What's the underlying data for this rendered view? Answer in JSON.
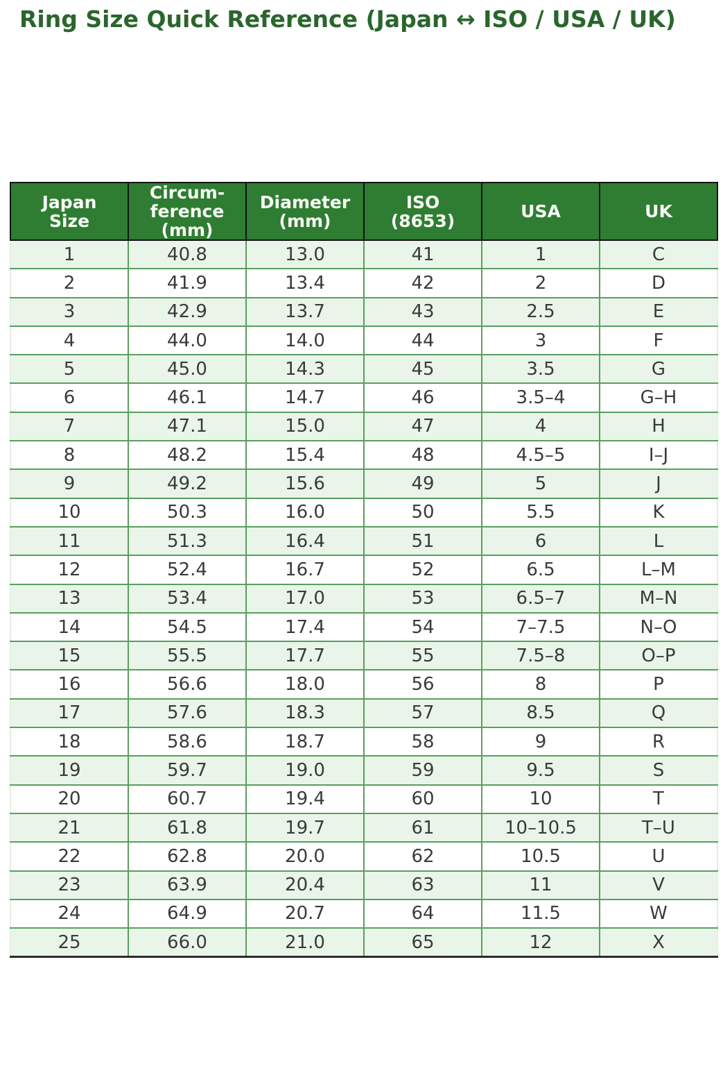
{
  "page": {
    "title": "Ring Size Quick Reference (Japan ↔ ISO / USA / UK)"
  },
  "chart_data": {
    "type": "table",
    "title": "Ring Size Quick Reference (Japan ↔ ISO / USA / UK)",
    "headers": [
      "Japan\nSize",
      "Circum-\nference\n(mm)",
      "Diameter\n(mm)",
      "ISO\n(8653)",
      "USA",
      "UK"
    ],
    "rows": [
      [
        "1",
        "40.8",
        "13.0",
        "41",
        "1",
        "C"
      ],
      [
        "2",
        "41.9",
        "13.4",
        "42",
        "2",
        "D"
      ],
      [
        "3",
        "42.9",
        "13.7",
        "43",
        "2.5",
        "E"
      ],
      [
        "4",
        "44.0",
        "14.0",
        "44",
        "3",
        "F"
      ],
      [
        "5",
        "45.0",
        "14.3",
        "45",
        "3.5",
        "G"
      ],
      [
        "6",
        "46.1",
        "14.7",
        "46",
        "3.5–4",
        "G–H"
      ],
      [
        "7",
        "47.1",
        "15.0",
        "47",
        "4",
        "H"
      ],
      [
        "8",
        "48.2",
        "15.4",
        "48",
        "4.5–5",
        "I–J"
      ],
      [
        "9",
        "49.2",
        "15.6",
        "49",
        "5",
        "J"
      ],
      [
        "10",
        "50.3",
        "16.0",
        "50",
        "5.5",
        "K"
      ],
      [
        "11",
        "51.3",
        "16.4",
        "51",
        "6",
        "L"
      ],
      [
        "12",
        "52.4",
        "16.7",
        "52",
        "6.5",
        "L–M"
      ],
      [
        "13",
        "53.4",
        "17.0",
        "53",
        "6.5–7",
        "M–N"
      ],
      [
        "14",
        "54.5",
        "17.4",
        "54",
        "7–7.5",
        "N–O"
      ],
      [
        "15",
        "55.5",
        "17.7",
        "55",
        "7.5–8",
        "O–P"
      ],
      [
        "16",
        "56.6",
        "18.0",
        "56",
        "8",
        "P"
      ],
      [
        "17",
        "57.6",
        "18.3",
        "57",
        "8.5",
        "Q"
      ],
      [
        "18",
        "58.6",
        "18.7",
        "58",
        "9",
        "R"
      ],
      [
        "19",
        "59.7",
        "19.0",
        "59",
        "9.5",
        "S"
      ],
      [
        "20",
        "60.7",
        "19.4",
        "60",
        "10",
        "T"
      ],
      [
        "21",
        "61.8",
        "19.7",
        "61",
        "10–10.5",
        "T–U"
      ],
      [
        "22",
        "62.8",
        "20.0",
        "62",
        "10.5",
        "U"
      ],
      [
        "23",
        "63.9",
        "20.4",
        "63",
        "11",
        "V"
      ],
      [
        "24",
        "64.9",
        "20.7",
        "64",
        "11.5",
        "W"
      ],
      [
        "25",
        "66.0",
        "21.0",
        "65",
        "12",
        "X"
      ]
    ],
    "layout": {
      "grid": true,
      "header_bg": "#2e7d32",
      "header_text_color": "#f9fcf5",
      "row_alt_color": "#e9f5e9",
      "row_base_color": "#ffffff",
      "grid_color": "#5a9e5e",
      "title_color": "#2a662c",
      "body_text_color": "#3a3a3a"
    }
  }
}
